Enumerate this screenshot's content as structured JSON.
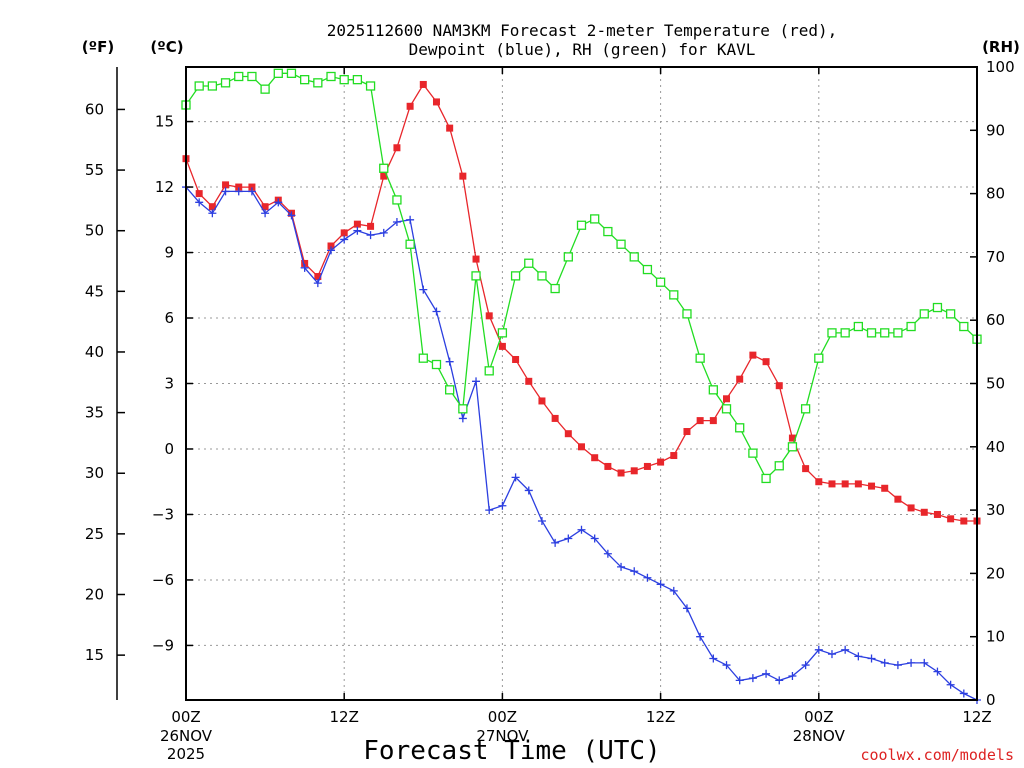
{
  "chart_data": {
    "type": "line",
    "title_line1": "2025112600 NAM3KM Forecast 2-meter Temperature (red),",
    "title_line2": "Dewpoint (blue), RH (green) for KAVL",
    "xlabel": "Forecast Time (UTC)",
    "watermark": "coolwx.com/models",
    "units": {
      "far": "(ºF)",
      "cel": "(ºC)",
      "rh": "(RH)"
    },
    "x_hours": [
      0,
      1,
      2,
      3,
      4,
      5,
      6,
      7,
      8,
      9,
      10,
      11,
      12,
      13,
      14,
      15,
      16,
      17,
      18,
      19,
      20,
      21,
      22,
      23,
      24,
      25,
      26,
      27,
      28,
      29,
      30,
      31,
      32,
      33,
      34,
      35,
      36,
      37,
      38,
      39,
      40,
      41,
      42,
      43,
      44,
      45,
      46,
      47,
      48,
      49,
      50,
      51,
      52,
      53,
      54,
      55,
      56,
      57,
      58,
      59,
      60
    ],
    "xlim_hours": [
      0,
      60
    ],
    "x_ticks": [
      {
        "hour": 0,
        "label": "00Z",
        "sub1": "26NOV",
        "sub2": "2025"
      },
      {
        "hour": 12,
        "label": "12Z"
      },
      {
        "hour": 24,
        "label": "00Z",
        "sub1": "27NOV"
      },
      {
        "hour": 36,
        "label": "12Z"
      },
      {
        "hour": 48,
        "label": "00Z",
        "sub1": "28NOV"
      },
      {
        "hour": 60,
        "label": "12Z"
      }
    ],
    "celsius_axis": {
      "ylim": [
        -11.5,
        17.5
      ],
      "ticks": [
        15,
        12,
        9,
        6,
        3,
        0,
        -3,
        -6,
        -9
      ]
    },
    "fahrenheit_axis": {
      "ticks": [
        60,
        55,
        50,
        45,
        40,
        35,
        30,
        25,
        20,
        15
      ]
    },
    "rh_axis": {
      "ylim": [
        0,
        100
      ],
      "ticks": [
        100,
        90,
        80,
        70,
        60,
        50,
        40,
        30,
        20,
        10,
        0
      ]
    },
    "series": [
      {
        "name": "Temperature",
        "units": "C",
        "color": "#e8262b",
        "values": [
          13.3,
          11.7,
          11.1,
          12.1,
          12.0,
          12.0,
          11.1,
          11.4,
          10.8,
          8.5,
          7.9,
          9.3,
          9.9,
          10.3,
          10.2,
          12.5,
          13.8,
          15.7,
          16.7,
          15.9,
          14.7,
          12.5,
          8.7,
          6.1,
          4.7,
          4.1,
          3.1,
          2.2,
          1.4,
          0.7,
          0.1,
          -0.4,
          -0.8,
          -1.1,
          -1.0,
          -0.8,
          -0.6,
          -0.3,
          0.8,
          1.3,
          1.3,
          2.3,
          3.2,
          4.3,
          4.0,
          2.9,
          0.5,
          -0.9,
          -1.5,
          -1.6,
          -1.6,
          -1.6,
          -1.7,
          -1.8,
          -2.3,
          -2.7,
          -2.9,
          -3.0,
          -3.2,
          -3.3,
          -3.3
        ]
      },
      {
        "name": "Dewpoint",
        "units": "C",
        "color": "#2c3fe0",
        "values": [
          12.0,
          11.3,
          10.8,
          11.8,
          11.8,
          11.8,
          10.8,
          11.3,
          10.7,
          8.3,
          7.6,
          9.1,
          9.6,
          10.0,
          9.8,
          9.9,
          10.4,
          10.5,
          7.3,
          6.3,
          4.0,
          1.4,
          3.1,
          -2.8,
          -2.6,
          -1.3,
          -1.9,
          -3.3,
          -4.3,
          -4.1,
          -3.7,
          -4.1,
          -4.8,
          -5.4,
          -5.6,
          -5.9,
          -6.2,
          -6.5,
          -7.3,
          -8.6,
          -9.6,
          -9.9,
          -10.6,
          -10.5,
          -10.3,
          -10.6,
          -10.4,
          -9.9,
          -9.2,
          -9.4,
          -9.2,
          -9.5,
          -9.6,
          -9.8,
          -9.9,
          -9.8,
          -9.8,
          -10.2,
          -10.8,
          -11.2,
          -11.5
        ]
      },
      {
        "name": "RH",
        "units": "%",
        "color": "#22dd22",
        "values": [
          94,
          97,
          97,
          97.5,
          98.5,
          98.5,
          96.5,
          99,
          99,
          98,
          97.5,
          98.5,
          98,
          98,
          97,
          84,
          79,
          72,
          54,
          53,
          49,
          46,
          67,
          52,
          58,
          67,
          69,
          67,
          65,
          70,
          75,
          76,
          74,
          72,
          70,
          68,
          66,
          64,
          61,
          54,
          49,
          46,
          43,
          39,
          35,
          37,
          40,
          46,
          54,
          58,
          58,
          59,
          58,
          58,
          58,
          59,
          61,
          62,
          61,
          59,
          57
        ]
      }
    ]
  }
}
